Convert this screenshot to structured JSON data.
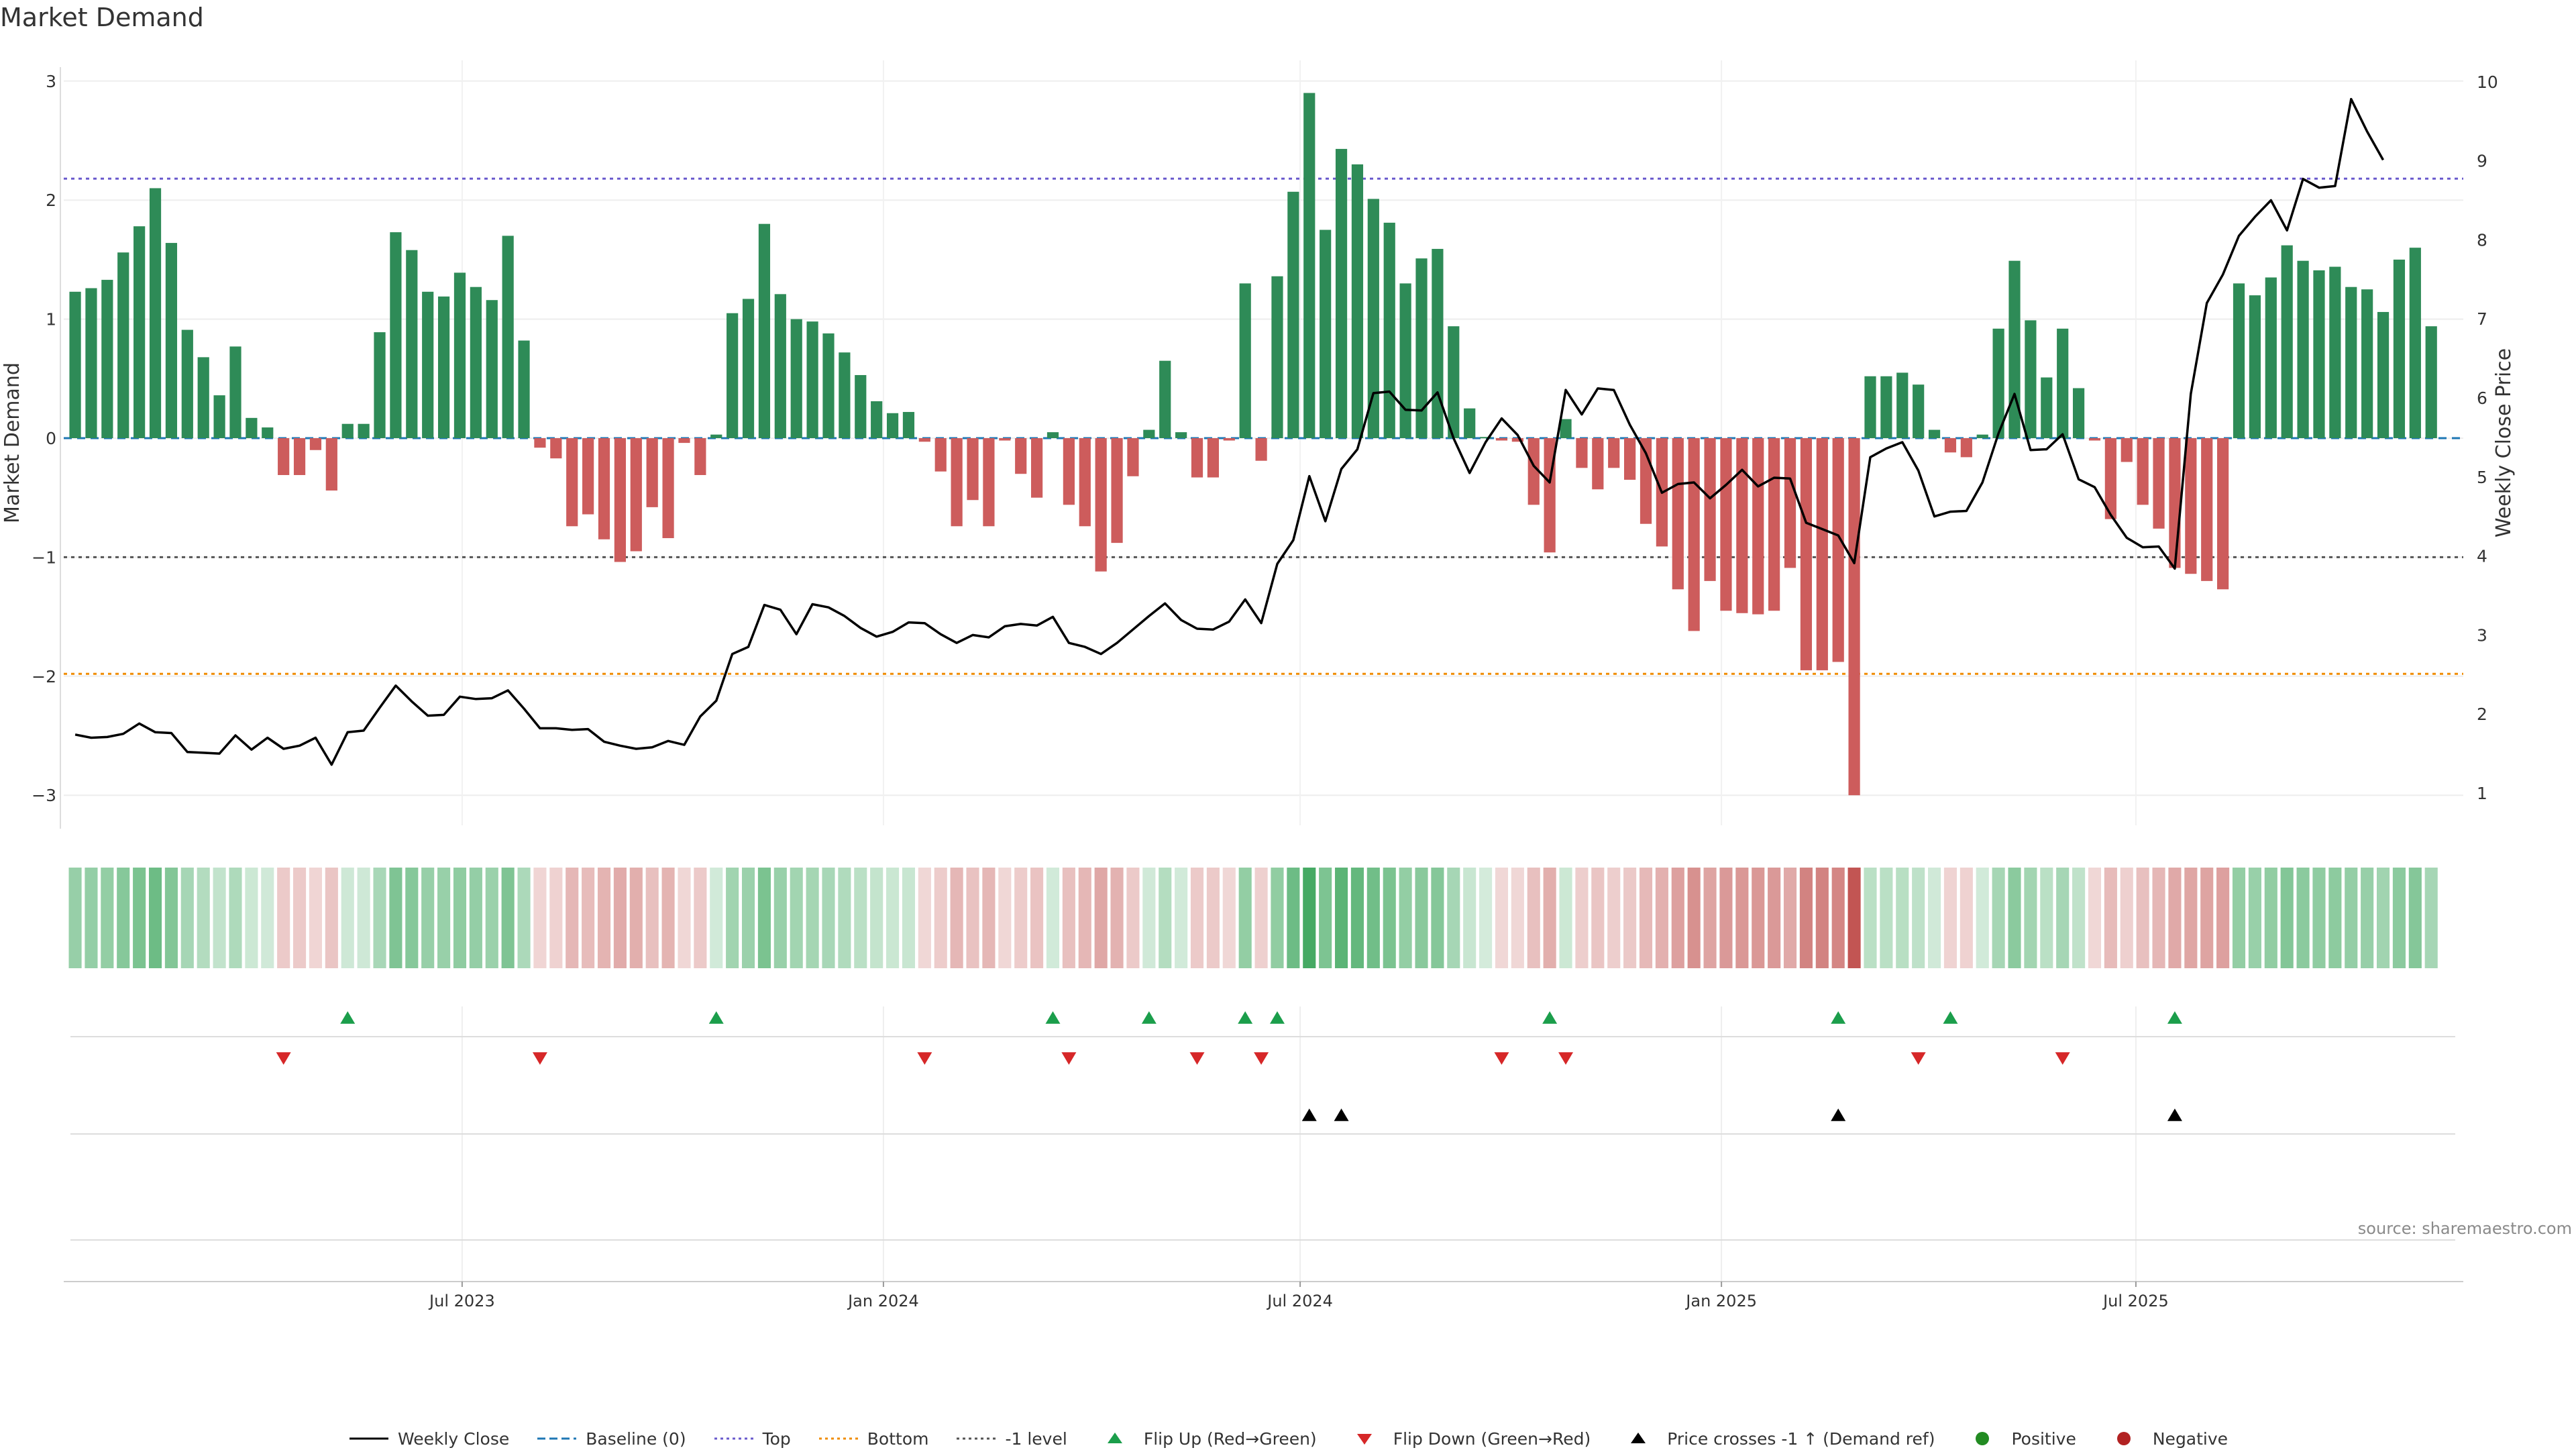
{
  "title": "Market Demand",
  "source": "source: sharemaestro.com",
  "colors": {
    "positive": "#2e8b57",
    "negative": "#cd5c5c",
    "price": "#000000",
    "top": "#6a5acd",
    "bottom": "#f08c00",
    "minus1": "#555555",
    "baseline": "#1f77b4",
    "flip_up": "#1b9e4b",
    "flip_down": "#d62728",
    "cross": "#000000",
    "dot_pos": "#228b22",
    "dot_neg": "#b22222"
  },
  "legend": [
    {
      "key": "price",
      "label": "Weekly Close"
    },
    {
      "key": "baseline",
      "label": "Baseline (0)"
    },
    {
      "key": "top",
      "label": "Top"
    },
    {
      "key": "bottom",
      "label": "Bottom"
    },
    {
      "key": "minus1",
      "label": "-1 level"
    },
    {
      "key": "flip_up",
      "label": "Flip Up (Red→Green)"
    },
    {
      "key": "flip_down",
      "label": "Flip Down (Green→Red)"
    },
    {
      "key": "cross",
      "label": "Price crosses -1 ↑ (Demand ref)"
    },
    {
      "key": "dot_pos",
      "label": "Positive"
    },
    {
      "key": "dot_neg",
      "label": "Negative"
    }
  ],
  "chart_data": {
    "type": "bar",
    "start_date": "2023-01-13",
    "step_days": 7,
    "x_ticks": [
      "Jul 2023",
      "Jan 2024",
      "Jul 2024",
      "Jan 2025",
      "Jul 2025"
    ],
    "x_tick_dates": [
      "2023-07-01",
      "2024-01-01",
      "2024-07-01",
      "2025-01-01",
      "2025-07-01"
    ],
    "x_range": [
      "2023-01-08",
      "2025-11-21"
    ],
    "ylabel": "Market Demand",
    "ylim": [
      -3.3,
      3.2
    ],
    "yticks": [
      -3,
      -2,
      -1,
      0,
      1,
      2,
      3
    ],
    "y2label": "Weekly Close Price",
    "y2lim": [
      0.5,
      10.25
    ],
    "y2ticks": [
      1,
      2,
      3,
      4,
      5,
      6,
      7,
      8,
      9,
      10
    ],
    "reference_lines": {
      "top": 2.18,
      "bottom": -1.98,
      "minus1": -1.0,
      "baseline": 0
    },
    "series": [
      {
        "name": "Market Demand",
        "values": [
          1.23,
          1.26,
          1.33,
          1.56,
          1.78,
          2.1,
          1.64,
          0.91,
          0.68,
          0.36,
          0.77,
          0.17,
          0.09,
          -0.31,
          -0.31,
          -0.1,
          -0.44,
          0.12,
          0.12,
          0.89,
          1.73,
          1.58,
          1.23,
          1.19,
          1.39,
          1.27,
          1.16,
          1.7,
          0.82,
          -0.08,
          -0.17,
          -0.74,
          -0.64,
          -0.85,
          -1.04,
          -0.95,
          -0.58,
          -0.84,
          -0.04,
          -0.31,
          0.03,
          1.05,
          1.17,
          1.8,
          1.21,
          1.0,
          0.98,
          0.88,
          0.72,
          0.53,
          0.31,
          0.21,
          0.22,
          -0.03,
          -0.28,
          -0.74,
          -0.52,
          -0.74,
          -0.02,
          -0.3,
          -0.5,
          0.05,
          -0.56,
          -0.74,
          -1.12,
          -0.88,
          -0.32,
          0.07,
          0.65,
          0.05,
          -0.33,
          -0.33,
          -0.02,
          1.3,
          -0.19,
          1.36,
          2.07,
          2.9,
          1.75,
          2.43,
          2.3,
          2.01,
          1.81,
          1.3,
          1.51,
          1.59,
          0.94,
          0.25,
          0.01,
          -0.02,
          -0.03,
          -0.56,
          -0.96,
          0.16,
          -0.25,
          -0.43,
          -0.25,
          -0.35,
          -0.72,
          -0.91,
          -1.27,
          -1.62,
          -1.2,
          -1.45,
          -1.47,
          -1.48,
          -1.45,
          -1.09,
          -1.95,
          -1.95,
          -1.88,
          -3.0,
          0.52,
          0.52,
          0.55,
          0.45,
          0.07,
          -0.12,
          -0.16,
          0.03,
          0.92,
          1.49,
          0.99,
          0.51,
          0.92,
          0.42,
          -0.02,
          -0.68,
          -0.2,
          -0.56,
          -0.76,
          -1.09,
          -1.14,
          -1.2,
          -1.27,
          1.3,
          1.2,
          1.35,
          1.62,
          1.49,
          1.41,
          1.44,
          1.27,
          1.25,
          1.06,
          1.5,
          1.6,
          0.94
        ]
      },
      {
        "name": "Weekly Close",
        "values": [
          1.74,
          1.7,
          1.71,
          1.75,
          1.88,
          1.77,
          1.76,
          1.52,
          1.51,
          1.5,
          1.73,
          1.55,
          1.7,
          1.56,
          1.6,
          1.7,
          1.36,
          1.77,
          1.79,
          2.08,
          2.36,
          2.16,
          1.98,
          1.99,
          2.22,
          2.19,
          2.2,
          2.3,
          2.07,
          1.82,
          1.82,
          1.8,
          1.81,
          1.65,
          1.6,
          1.56,
          1.58,
          1.66,
          1.61,
          1.97,
          2.17,
          2.76,
          2.85,
          3.38,
          3.32,
          3.01,
          3.39,
          3.35,
          3.24,
          3.09,
          2.98,
          3.04,
          3.16,
          3.15,
          3.01,
          2.9,
          3.0,
          2.97,
          3.11,
          3.14,
          3.12,
          3.23,
          2.9,
          2.85,
          2.76,
          2.9,
          3.07,
          3.24,
          3.4,
          3.19,
          3.08,
          3.07,
          3.17,
          3.45,
          3.15,
          3.9,
          4.2,
          5.01,
          4.44,
          5.1,
          5.35,
          6.06,
          6.08,
          5.85,
          5.84,
          6.07,
          5.49,
          5.05,
          5.44,
          5.74,
          5.53,
          5.14,
          4.93,
          6.1,
          5.79,
          6.12,
          6.1,
          5.66,
          5.3,
          4.8,
          4.91,
          4.93,
          4.73,
          4.9,
          5.09,
          4.88,
          4.99,
          4.98,
          4.42,
          4.34,
          4.26,
          3.91,
          5.25,
          5.36,
          5.44,
          5.08,
          4.5,
          4.56,
          4.57,
          4.93,
          5.55,
          6.05,
          5.34,
          5.35,
          5.54,
          4.97,
          4.87,
          4.52,
          4.23,
          4.11,
          4.12,
          3.84,
          6.05,
          7.2,
          7.56,
          8.05,
          8.29,
          8.5,
          8.12,
          8.77,
          8.66,
          8.68,
          9.78,
          9.37,
          9.01
        ]
      }
    ],
    "flip_up_index": [
      17,
      40,
      61,
      67,
      73,
      75,
      92,
      110,
      117,
      131
    ],
    "flip_down_index": [
      13,
      29,
      53,
      62,
      70,
      74,
      89,
      93,
      115,
      124
    ],
    "price_cross_index": [
      77,
      79,
      110,
      131
    ]
  }
}
